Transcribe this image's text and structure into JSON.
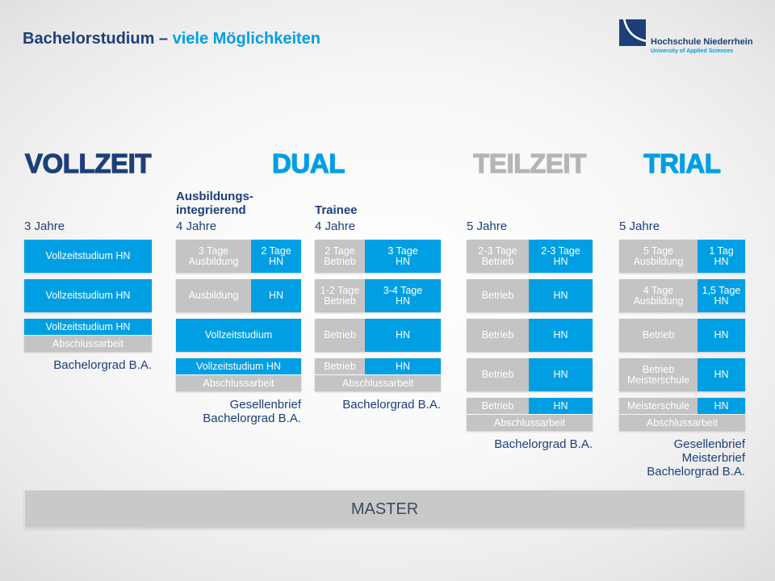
{
  "title": {
    "part1": "Bachelorstudium –",
    "part2": "viele Möglichkeiten"
  },
  "logo": {
    "icon": "hn-logo-icon",
    "name": "Hochschule Niederrhein",
    "tagline": "University of Applied Sciences"
  },
  "colors": {
    "navy": "#1d3f78",
    "accent": "#009fe3",
    "grey": "#c4c4c4",
    "heading_grey": "#b5b5b5",
    "master_grey": "#c9c9c9",
    "master_text": "#3e4a5c"
  },
  "headings": {
    "vollzeit": "VOLLZEIT",
    "dual": "DUAL",
    "teilzeit": "TEILZEIT",
    "trial": "TRIAL"
  },
  "columns": {
    "vollzeit": {
      "duration": "3 Jahre",
      "rows": [
        "Vollzeitstudium HN",
        "Vollzeitstudium HN"
      ],
      "final": {
        "study": "Vollzeitstudium HN",
        "thesis": "Abschlussarbeit"
      },
      "results": [
        "Bachelorgrad B.A."
      ]
    },
    "ausbildungsintegrierend": {
      "subtitle": [
        "Ausbildungs-",
        "integrierend"
      ],
      "duration": "4 Jahre",
      "rows": [
        {
          "practice": "3 Tage\nAusbildung",
          "hn": "2 Tage\nHN"
        },
        {
          "practice": "Ausbildung",
          "hn": "HN"
        }
      ],
      "full_row": "Vollzeitstudium",
      "final": {
        "study": "Vollzeitstudium HN",
        "thesis": "Abschlussarbeit"
      },
      "results": [
        "Gesellenbrief",
        "Bachelorgrad B.A."
      ]
    },
    "trainee": {
      "subtitle": "Trainee",
      "duration": "4 Jahre",
      "rows": [
        {
          "practice": "2 Tage\nBetrieb",
          "hn": "3 Tage\nHN"
        },
        {
          "practice": "1-2 Tage\nBetrieb",
          "hn": "3-4 Tage\nHN"
        },
        {
          "practice": "Betrieb",
          "hn": "HN"
        }
      ],
      "final": {
        "practice": "Betrieb",
        "hn": "HN",
        "thesis": "Abschlussarbeit"
      },
      "results": [
        "Bachelorgrad B.A."
      ]
    },
    "teilzeit": {
      "duration": "5 Jahre",
      "rows": [
        {
          "practice": "2-3 Tage\nBetrieb",
          "hn": "2-3 Tage\nHN"
        },
        {
          "practice": "Betrieb",
          "hn": "HN"
        },
        {
          "practice": "Betrieb",
          "hn": "HN"
        },
        {
          "practice": "Betrieb",
          "hn": "HN"
        }
      ],
      "final": {
        "practice": "Betrieb",
        "hn": "HN",
        "thesis": "Abschlussarbeit"
      },
      "results": [
        "Bachelorgrad B.A."
      ]
    },
    "trial": {
      "duration": "5 Jahre",
      "rows": [
        {
          "practice": "5 Tage\nAusbildung",
          "hn": "1 Tag\nHN"
        },
        {
          "practice": "4 Tage\nAusbildung",
          "hn": "1,5 Tage\nHN"
        },
        {
          "practice": "Betrieb",
          "hn": "HN"
        },
        {
          "practice": "Betrieb\nMeisterschule",
          "hn": "HN"
        }
      ],
      "final": {
        "practice": "Meisterschule",
        "hn": "HN",
        "thesis": "Abschlussarbeit"
      },
      "results": [
        "Gesellenbrief",
        "Meisterbrief",
        "Bachelorgrad B.A."
      ]
    }
  },
  "master": "MASTER"
}
